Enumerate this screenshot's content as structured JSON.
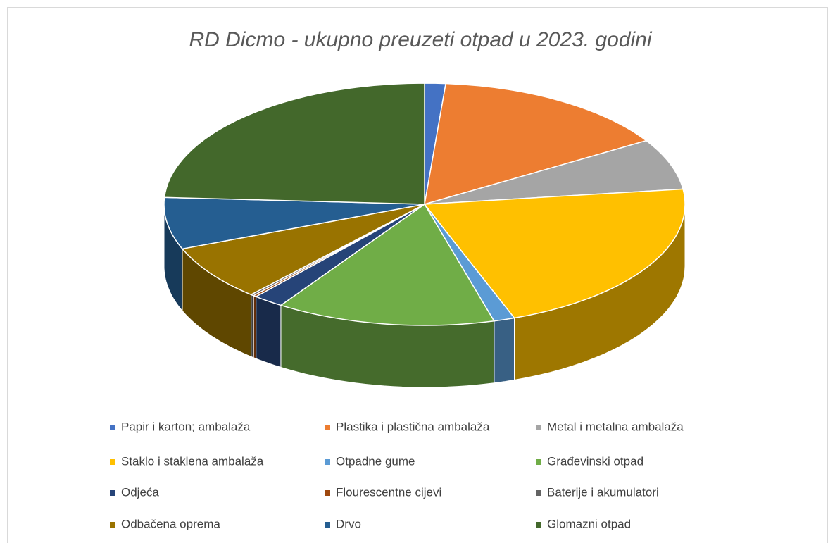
{
  "chart_data": {
    "type": "pie3d",
    "title": "RD Dicmo - ukupno preuzeti otpad u 2023. godini",
    "categories": [
      "Papir i karton; ambalaža",
      "Plastika i plastična ambalaža",
      "Metal i metalna ambalaža",
      "Staklo i staklena ambalaža",
      "Otpadne gume",
      "Građevinski otpad",
      "Odjeća",
      "Flourescentne cijevi",
      "Baterije i akumulatori",
      "Odbačena oprema",
      "Drvo",
      "Glomazni otpad"
    ],
    "values": [
      1.3,
      14.9,
      6.8,
      21.4,
      1.3,
      13.6,
      1.9,
      0.2,
      0.2,
      7.4,
      6.9,
      24.1
    ],
    "colors": [
      "#4472c4",
      "#ed7d31",
      "#a5a5a5",
      "#ffc000",
      "#5b9bd5",
      "#70ad47",
      "#264478",
      "#9e480e",
      "#636363",
      "#997300",
      "#255e91",
      "#43682b"
    ],
    "legend": "bottom"
  }
}
